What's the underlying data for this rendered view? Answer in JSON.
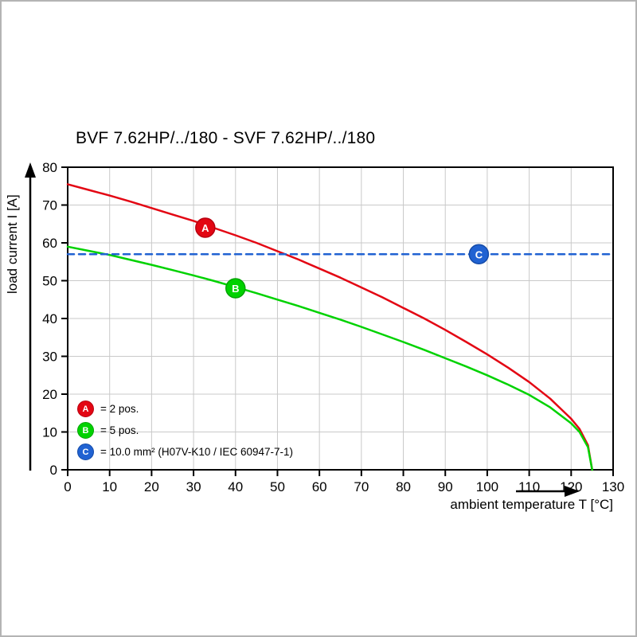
{
  "chart_data": {
    "type": "line",
    "title": "BVF 7.62HP/../180 - SVF 7.62HP/../180",
    "xlabel": "ambient temperature T [°C]",
    "ylabel": "load current I [A]",
    "xlim": [
      0,
      130
    ],
    "ylim": [
      0,
      80
    ],
    "xticks": [
      0,
      10,
      20,
      30,
      40,
      50,
      60,
      70,
      80,
      90,
      100,
      110,
      120,
      130
    ],
    "yticks": [
      0,
      10,
      20,
      30,
      40,
      50,
      60,
      70,
      80
    ],
    "grid": true,
    "grid_color": "#c9c9c9",
    "series": [
      {
        "name": "A",
        "label": "= 2 pos.",
        "color": "#e30613",
        "edge": "#b80010",
        "style": "solid",
        "points": [
          [
            0,
            75.5
          ],
          [
            5,
            74
          ],
          [
            10,
            72.5
          ],
          [
            15,
            70.9
          ],
          [
            20,
            69.2
          ],
          [
            25,
            67.5
          ],
          [
            30,
            65.8
          ],
          [
            35,
            63.9
          ],
          [
            40,
            62
          ],
          [
            45,
            60
          ],
          [
            50,
            57.8
          ],
          [
            55,
            55.6
          ],
          [
            60,
            53.2
          ],
          [
            65,
            50.8
          ],
          [
            70,
            48.2
          ],
          [
            75,
            45.6
          ],
          [
            80,
            42.8
          ],
          [
            85,
            40
          ],
          [
            90,
            37
          ],
          [
            95,
            33.8
          ],
          [
            100,
            30.5
          ],
          [
            105,
            27
          ],
          [
            110,
            23.2
          ],
          [
            115,
            18.8
          ],
          [
            120,
            13.5
          ],
          [
            122,
            10.8
          ],
          [
            124,
            6.5
          ],
          [
            125,
            0
          ]
        ]
      },
      {
        "name": "B",
        "label": "= 5 pos.",
        "color": "#00d200",
        "edge": "#00a400",
        "style": "solid",
        "points": [
          [
            0,
            59
          ],
          [
            5,
            57.9
          ],
          [
            10,
            56.8
          ],
          [
            15,
            55.5
          ],
          [
            20,
            54.2
          ],
          [
            25,
            52.8
          ],
          [
            30,
            51.4
          ],
          [
            35,
            49.9
          ],
          [
            40,
            48.3
          ],
          [
            45,
            46.7
          ],
          [
            50,
            45
          ],
          [
            55,
            43.3
          ],
          [
            60,
            41.5
          ],
          [
            65,
            39.7
          ],
          [
            70,
            37.8
          ],
          [
            75,
            35.8
          ],
          [
            80,
            33.8
          ],
          [
            85,
            31.7
          ],
          [
            90,
            29.5
          ],
          [
            95,
            27.3
          ],
          [
            100,
            25
          ],
          [
            105,
            22.5
          ],
          [
            110,
            19.8
          ],
          [
            115,
            16.5
          ],
          [
            120,
            12.3
          ],
          [
            122,
            10
          ],
          [
            124,
            6
          ],
          [
            125,
            0
          ]
        ]
      },
      {
        "name": "C",
        "label": "= 10.0 mm² (H07V-K10 / IEC 60947-7-1)",
        "color": "#2062d2",
        "edge": "#144ba8",
        "style": "dashed",
        "points": [
          [
            0,
            57
          ],
          [
            130,
            57
          ]
        ]
      }
    ],
    "markers": [
      {
        "series": "A",
        "letter": "A",
        "x": 32.8,
        "y": 64
      },
      {
        "series": "B",
        "letter": "B",
        "x": 40,
        "y": 48
      },
      {
        "series": "C",
        "letter": "C",
        "x": 98,
        "y": 57
      }
    ],
    "legend": {
      "position": "bottom-left",
      "entries": [
        {
          "letter": "A",
          "label": "= 2 pos.",
          "color": "#e30613",
          "edge": "#b80010"
        },
        {
          "letter": "B",
          "label": "= 5 pos.",
          "color": "#00d200",
          "edge": "#00a400"
        },
        {
          "letter": "C",
          "label": "= 10.0 mm² (H07V-K10 / IEC 60947-7-1)",
          "color": "#2062d2",
          "edge": "#144ba8"
        }
      ]
    }
  }
}
